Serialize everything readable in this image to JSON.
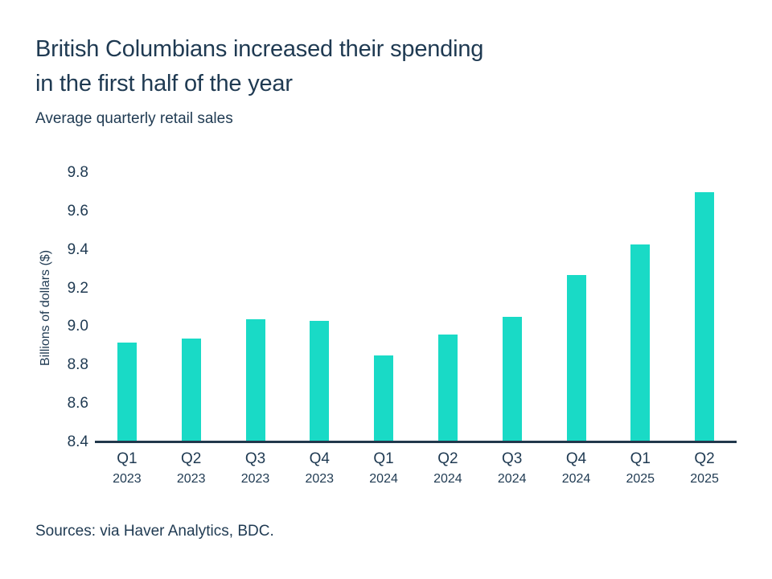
{
  "header": {
    "title_lines": [
      "British Columbians increased their spending",
      "in the first half of the year"
    ],
    "subtitle": "Average quarterly retail sales"
  },
  "chart_data": {
    "type": "bar",
    "title": "British Columbians increased their spending in the first half of the year",
    "subtitle": "Average quarterly retail sales",
    "xlabel": "",
    "ylabel": "Billions of dollars ($)",
    "ylim": [
      8.4,
      9.8
    ],
    "ytick_step": 0.2,
    "grid": false,
    "legend": "none",
    "bar_color": "#19dac6",
    "axis_color": "#22384c",
    "text_color": "#1f3a52",
    "categories": [
      {
        "quarter": "Q1",
        "year": "2023"
      },
      {
        "quarter": "Q2",
        "year": "2023"
      },
      {
        "quarter": "Q3",
        "year": "2023"
      },
      {
        "quarter": "Q4",
        "year": "2023"
      },
      {
        "quarter": "Q1",
        "year": "2024"
      },
      {
        "quarter": "Q2",
        "year": "2024"
      },
      {
        "quarter": "Q3",
        "year": "2024"
      },
      {
        "quarter": "Q4",
        "year": "2024"
      },
      {
        "quarter": "Q1",
        "year": "2025"
      },
      {
        "quarter": "Q2",
        "year": "2025"
      }
    ],
    "values": [
      8.92,
      8.94,
      9.04,
      9.03,
      8.85,
      8.96,
      9.05,
      9.27,
      9.43,
      9.7
    ]
  },
  "footer": {
    "source": "Sources: via Haver Analytics, BDC."
  }
}
